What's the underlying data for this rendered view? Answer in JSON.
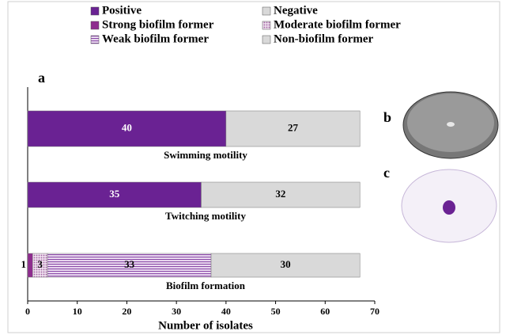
{
  "chart_data": {
    "type": "stacked-barh",
    "panel_labels": [
      "a",
      "b",
      "c"
    ],
    "categories": [
      "Swimming motility",
      "Twitching motility",
      "Biofilm formation"
    ],
    "series": [
      {
        "name": "Positive",
        "color": "#6a2293",
        "values": [
          40,
          35,
          null
        ]
      },
      {
        "name": "Negative",
        "color": "#d9d9d9",
        "values": [
          27,
          32,
          null
        ]
      },
      {
        "name": "Strong biofilm former",
        "color": "#8e2c8e",
        "values": [
          null,
          null,
          1
        ]
      },
      {
        "name": "Moderate biofilm former",
        "color": "#c9a0c9",
        "pattern": "dots",
        "values": [
          null,
          null,
          3
        ]
      },
      {
        "name": "Weak biofilm former",
        "color": "#8a4aa8",
        "pattern": "hlines",
        "values": [
          null,
          null,
          33
        ]
      },
      {
        "name": "Non-biofilm former",
        "color": "#d9d9d9",
        "values": [
          null,
          null,
          30
        ]
      }
    ],
    "x_label": "Number of isolates",
    "xlim": [
      0,
      70
    ],
    "xticks": [
      0,
      10,
      20,
      30,
      40,
      50,
      60,
      70
    ]
  }
}
